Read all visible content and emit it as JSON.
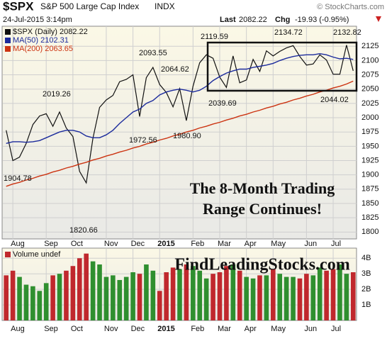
{
  "header": {
    "symbol": "$SPX",
    "name": "S&P 500 Large Cap Index",
    "exchange": "INDX",
    "credit": "© StockCharts.com",
    "datetime": "24-Jul-2015 3:14pm",
    "last_label": "Last",
    "last": "2082.22",
    "chg_label": "Chg",
    "chg": "-19.93 (-0.95%)"
  },
  "callout": [
    "The 8-Month Trading",
    "Range Continues!"
  ],
  "watermark": "FindLeadingStocks.com",
  "price_labels": [
    "1904.78",
    "2019.26",
    "1820.66",
    "2093.55",
    "1972.56",
    "2064.62",
    "1980.90",
    "2119.59",
    "2039.69",
    "2134.72",
    "2044.02",
    "2132.82"
  ],
  "chart_data": [
    {
      "type": "line",
      "categories": [
        null,
        "Aug",
        null,
        null,
        null,
        null,
        "Sep",
        null,
        null,
        null,
        "Oct",
        null,
        null,
        null,
        null,
        "Nov",
        null,
        null,
        null,
        "Dec",
        null,
        null,
        null,
        "2015",
        null,
        null,
        null,
        null,
        "Feb",
        null,
        null,
        null,
        "Mar",
        null,
        null,
        null,
        "Apr",
        null,
        null,
        null,
        "May",
        null,
        null,
        null,
        null,
        "Jun",
        null,
        null,
        null,
        "Jul",
        null,
        null,
        null
      ],
      "series": [
        {
          "name": "$SPX (Daily) 2082.22",
          "color": "#111111",
          "values": [
            1978,
            1925,
            1931,
            1955,
            1988,
            2003,
            2007,
            1985,
            2010,
            1982,
            1967,
            1906,
            1886,
            1964,
            2018,
            2031,
            2039,
            2063,
            2067,
            2075,
            2002,
            2070,
            2088,
            2058,
            2044,
            2019,
            2051,
            1995,
            2055,
            2096,
            2110,
            2104,
            2071,
            2053,
            2108,
            2061,
            2066,
            2102,
            2081,
            2117,
            2108,
            2116,
            2122,
            2126,
            2107,
            2092,
            2094,
            2110,
            2101,
            2076,
            2076,
            2127,
            2082
          ]
        },
        {
          "name": "MA(50) 2102.31",
          "color": "#1c2b9c",
          "values": [
            1955,
            1958,
            1958,
            1957,
            1958,
            1960,
            1965,
            1970,
            1975,
            1978,
            1978,
            1975,
            1968,
            1965,
            1965,
            1970,
            1978,
            1990,
            2000,
            2010,
            2015,
            2025,
            2030,
            2040,
            2045,
            2048,
            2050,
            2048,
            2045,
            2048,
            2055,
            2065,
            2072,
            2078,
            2082,
            2085,
            2085,
            2088,
            2090,
            2092,
            2095,
            2100,
            2104,
            2107,
            2109,
            2110,
            2110,
            2112,
            2110,
            2106,
            2103,
            2104,
            2102
          ]
        },
        {
          "name": "MA(200) 2063.65",
          "color": "#cc3311",
          "values": [
            1880,
            1884,
            1887,
            1891,
            1894,
            1898,
            1901,
            1905,
            1908,
            1912,
            1915,
            1919,
            1922,
            1926,
            1929,
            1933,
            1936,
            1940,
            1943,
            1947,
            1950,
            1954,
            1957,
            1961,
            1964,
            1968,
            1971,
            1975,
            1978,
            1982,
            1985,
            1989,
            1992,
            1996,
            1999,
            2003,
            2006,
            2010,
            2013,
            2017,
            2020,
            2024,
            2027,
            2031,
            2034,
            2038,
            2041,
            2045,
            2048,
            2052,
            2055,
            2059,
            2064
          ]
        }
      ],
      "ylim": [
        1788,
        2160
      ],
      "yticks": [
        1800,
        1825,
        1850,
        1875,
        1900,
        1925,
        1950,
        1975,
        2000,
        2025,
        2050,
        2075,
        2100,
        2125
      ],
      "grid": true
    },
    {
      "type": "bar",
      "categories": [
        null,
        "Aug",
        null,
        null,
        null,
        null,
        "Sep",
        null,
        null,
        null,
        "Oct",
        null,
        null,
        null,
        null,
        "Nov",
        null,
        null,
        null,
        "Dec",
        null,
        null,
        null,
        "2015",
        null,
        null,
        null,
        null,
        "Feb",
        null,
        null,
        null,
        "Mar",
        null,
        null,
        null,
        "Apr",
        null,
        null,
        null,
        "May",
        null,
        null,
        null,
        null,
        "Jun",
        null,
        null,
        null,
        "Jul",
        null,
        null,
        null
      ],
      "series": [
        {
          "name": "Volume undef",
          "color": "#c0282d",
          "up_color": "#2f8f2f",
          "values": [
            2.9,
            3.2,
            2.8,
            2.3,
            2.2,
            1.9,
            2.4,
            2.9,
            3.0,
            3.2,
            3.5,
            4.0,
            4.3,
            3.8,
            3.6,
            2.8,
            2.9,
            2.6,
            2.8,
            3.1,
            3.0,
            3.6,
            3.2,
            1.9,
            3.1,
            3.4,
            3.3,
            3.6,
            3.5,
            3.2,
            2.7,
            3.0,
            3.1,
            3.5,
            3.6,
            3.2,
            2.8,
            2.7,
            2.9,
            2.9,
            3.3,
            3.0,
            2.8,
            2.8,
            2.7,
            3.0,
            2.9,
            3.4,
            3.2,
            3.3,
            3.6,
            3.0,
            3.1
          ]
        }
      ],
      "ylim": [
        0,
        4.65
      ],
      "yticks": [
        {
          "value": 1,
          "label": "1B"
        },
        {
          "value": 2,
          "label": "2B"
        },
        {
          "value": 3,
          "label": "3B"
        },
        {
          "value": 4,
          "label": "4B"
        }
      ],
      "grid": true
    }
  ]
}
